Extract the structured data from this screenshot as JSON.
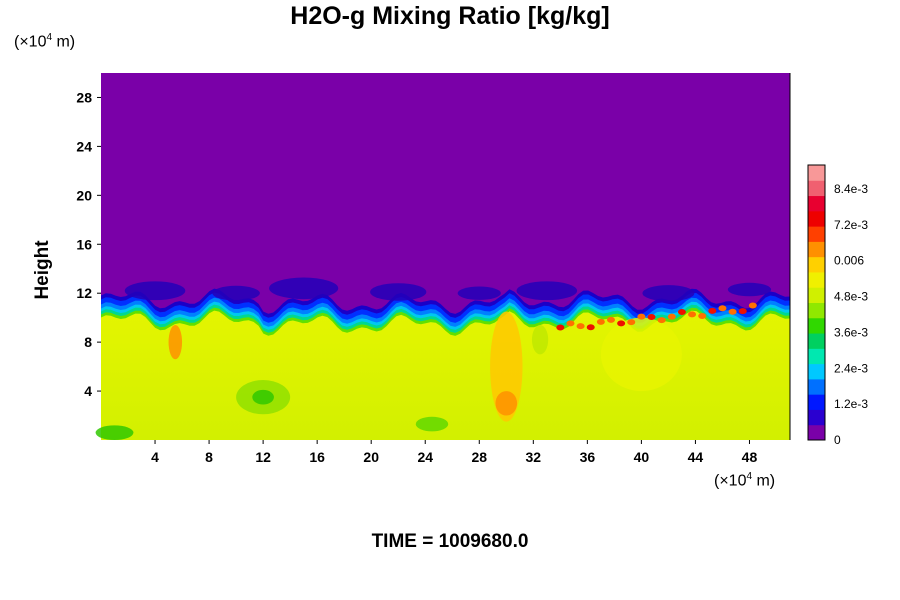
{
  "chart_data": {
    "type": "heatmap",
    "title": "H2O-g Mixing Ratio [kg/kg]",
    "ylabel": "Height",
    "xlabel": "",
    "x_unit_prefix": "(×10",
    "x_unit_exp": "4",
    "x_unit_suffix": " m)",
    "y_unit_prefix": "(×10",
    "y_unit_exp": "4",
    "y_unit_suffix": " m)",
    "xlim": [
      0,
      51
    ],
    "ylim": [
      0,
      30
    ],
    "x_ticks": [
      4,
      8,
      12,
      16,
      20,
      24,
      28,
      32,
      36,
      40,
      44,
      48
    ],
    "y_ticks": [
      4,
      8,
      12,
      16,
      20,
      24,
      28
    ],
    "colorbar": {
      "range": [
        0,
        0.0092
      ],
      "tick_values": [
        0,
        0.0012,
        0.0024,
        0.0036,
        0.0048,
        0.006,
        0.0072,
        0.0084
      ],
      "tick_labels": [
        "0",
        "1.2e-3",
        "2.4e-3",
        "3.6e-3",
        "4.8e-3",
        "0.006",
        "7.2e-3",
        "8.4e-3"
      ],
      "colors": [
        "#7a00a8",
        "#2a00d0",
        "#0018ff",
        "#0070ff",
        "#00c8ff",
        "#00e8b0",
        "#00d060",
        "#30d800",
        "#90e800",
        "#d0f000",
        "#f0f000",
        "#ffd000",
        "#ff9000",
        "#ff4000",
        "#ee0000",
        "#e80030",
        "#f06070",
        "#f89898"
      ]
    },
    "boundary_height_approx": 11.5,
    "footer": "TIME = 1009680.0"
  }
}
